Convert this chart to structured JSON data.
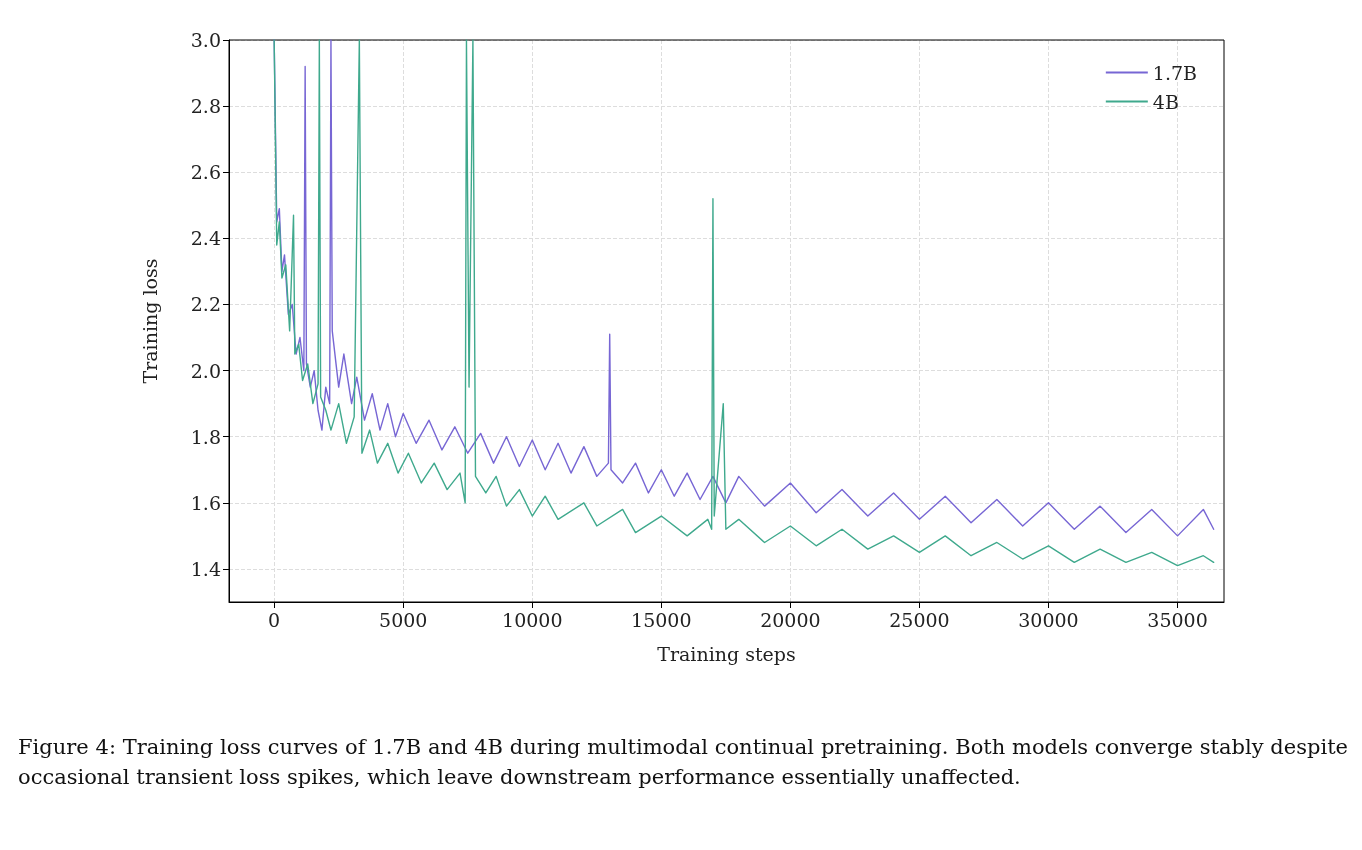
{
  "chart_data": {
    "type": "line",
    "xlabel": "Training steps",
    "ylabel": "Training loss",
    "xlim": [
      -1750,
      36800
    ],
    "xticks": [
      0,
      5000,
      10000,
      15000,
      20000,
      25000,
      30000,
      35000
    ],
    "ylim": [
      1.3,
      3.0
    ],
    "yticks": [
      1.4,
      1.6,
      1.8,
      {
        "value": 2,
        "label": "2.0"
      },
      2.2,
      2.4,
      2.6,
      2.8,
      {
        "value": 3,
        "label": "3.0"
      }
    ],
    "grid": true,
    "legend": "top right",
    "marker": "none",
    "line_style": "solid",
    "annotations": [
      "Figure 4: Training loss curves of 1.7B and 4B during multimodal continual pretraining. Both models converge stably despite occasional transient loss spikes, which leave downstream performance essentially unaffected."
    ],
    "series": [
      {
        "name": "1.7B",
        "color": "#7766d4",
        "x": [
          0,
          100,
          200,
          300,
          400,
          550,
          700,
          850,
          1000,
          1150,
          1200,
          1250,
          1400,
          1550,
          1700,
          1850,
          2000,
          2150,
          2200,
          2250,
          2500,
          2700,
          3000,
          3200,
          3500,
          3800,
          4100,
          4400,
          4700,
          5000,
          5500,
          6000,
          6500,
          7000,
          7500,
          8000,
          8500,
          9000,
          9500,
          10000,
          10500,
          11000,
          11500,
          12000,
          12500,
          12950,
          13000,
          13050,
          13500,
          14000,
          14500,
          15000,
          15500,
          16000,
          16500,
          17000,
          17500,
          18000,
          19000,
          20000,
          21000,
          22000,
          23000,
          24000,
          25000,
          26000,
          27000,
          28000,
          29000,
          30000,
          31000,
          32000,
          33000,
          34000,
          35000,
          36000,
          36400
        ],
        "values": [
          3.0,
          2.45,
          2.49,
          2.3,
          2.35,
          2.17,
          2.2,
          2.05,
          2.1,
          2.0,
          2.92,
          2.02,
          1.95,
          2.0,
          1.88,
          1.82,
          1.95,
          1.9,
          3.0,
          2.12,
          1.95,
          2.05,
          1.9,
          1.98,
          1.85,
          1.93,
          1.82,
          1.9,
          1.8,
          1.87,
          1.78,
          1.85,
          1.76,
          1.83,
          1.75,
          1.81,
          1.72,
          1.8,
          1.71,
          1.79,
          1.7,
          1.78,
          1.69,
          1.77,
          1.68,
          1.72,
          2.11,
          1.7,
          1.66,
          1.72,
          1.63,
          1.7,
          1.62,
          1.69,
          1.61,
          1.68,
          1.6,
          1.68,
          1.59,
          1.66,
          1.57,
          1.64,
          1.56,
          1.63,
          1.55,
          1.62,
          1.54,
          1.61,
          1.53,
          1.6,
          1.52,
          1.59,
          1.51,
          1.58,
          1.5,
          1.58,
          1.52
        ]
      },
      {
        "name": "4B",
        "color": "#3fa98d",
        "x": [
          0,
          100,
          200,
          300,
          450,
          600,
          750,
          800,
          950,
          1100,
          1300,
          1500,
          1700,
          1750,
          1800,
          2000,
          2200,
          2500,
          2800,
          3100,
          3300,
          3400,
          3700,
          4000,
          4400,
          4800,
          5200,
          5700,
          6200,
          6700,
          7200,
          7400,
          7450,
          7550,
          7700,
          7800,
          8200,
          8600,
          9000,
          9500,
          10000,
          10500,
          11000,
          12000,
          12500,
          13500,
          14000,
          15000,
          16000,
          16800,
          16950,
          17000,
          17050,
          17400,
          17500,
          18000,
          19000,
          20000,
          21000,
          22000,
          23000,
          24000,
          25000,
          26000,
          27000,
          28000,
          29000,
          30000,
          31000,
          32000,
          33000,
          34000,
          35000,
          36000,
          36400
        ],
        "values": [
          3.0,
          2.38,
          2.45,
          2.28,
          2.32,
          2.12,
          2.47,
          2.05,
          2.08,
          1.97,
          2.02,
          1.9,
          1.96,
          3.0,
          1.92,
          1.88,
          1.82,
          1.9,
          1.78,
          1.86,
          3.0,
          1.75,
          1.82,
          1.72,
          1.78,
          1.69,
          1.75,
          1.66,
          1.72,
          1.64,
          1.69,
          1.6,
          3.0,
          1.95,
          3.0,
          1.68,
          1.63,
          1.68,
          1.59,
          1.64,
          1.56,
          1.62,
          1.55,
          1.6,
          1.53,
          1.58,
          1.51,
          1.56,
          1.5,
          1.55,
          1.52,
          2.52,
          1.56,
          1.9,
          1.52,
          1.55,
          1.48,
          1.53,
          1.47,
          1.52,
          1.46,
          1.5,
          1.45,
          1.5,
          1.44,
          1.48,
          1.43,
          1.47,
          1.42,
          1.46,
          1.42,
          1.45,
          1.41,
          1.44,
          1.42
        ]
      }
    ]
  }
}
